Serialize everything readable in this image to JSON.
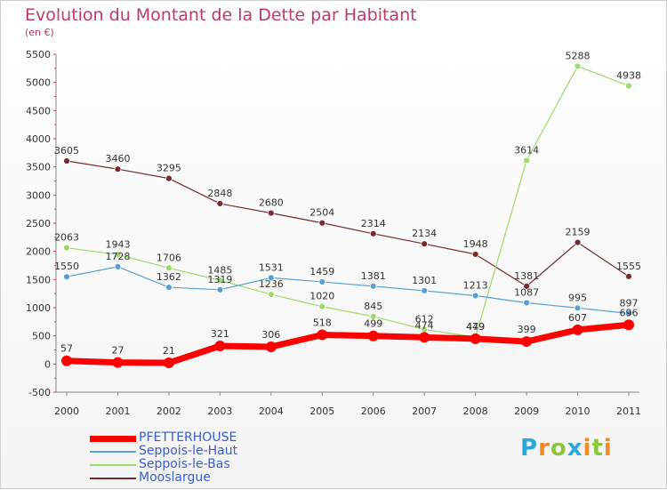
{
  "title": "Evolution du Montant de la Dette par Habitant",
  "subtitle": "(en €)",
  "logo": {
    "letters": [
      "P",
      "r",
      "o",
      "x",
      "i",
      "t",
      "i"
    ],
    "colors": [
      "#2aa7d8",
      "#f08a24",
      "#8cc63e",
      "#2aa7d8",
      "#f08a24",
      "#8cc63e",
      "#f08a24"
    ]
  },
  "chart_data": {
    "type": "line",
    "title": "Evolution du Montant de la Dette par Habitant",
    "subtitle": "(en €)",
    "xlabel": "",
    "ylabel": "",
    "ylim": [
      -500,
      5500
    ],
    "yticks": [
      -500,
      0,
      500,
      1000,
      1500,
      2000,
      2500,
      3000,
      3500,
      4000,
      4500,
      5000,
      5500
    ],
    "categories": [
      "2000",
      "2001",
      "2002",
      "2003",
      "2004",
      "2005",
      "2006",
      "2007",
      "2008",
      "2009",
      "2010",
      "2011"
    ],
    "grid": false,
    "legend_position": "bottom-left",
    "series": [
      {
        "name": "PFETTERHOUSE",
        "color": "#ff0000",
        "values": [
          57,
          27,
          21,
          321,
          306,
          518,
          499,
          474,
          449,
          399,
          607,
          696
        ]
      },
      {
        "name": "Seppois-le-Haut",
        "color": "#5a9fd4",
        "values": [
          1550,
          1728,
          1362,
          1319,
          1531,
          1459,
          1381,
          1301,
          1213,
          1087,
          995,
          897
        ]
      },
      {
        "name": "Seppois-le-Bas",
        "color": "#9cdb6a",
        "values": [
          2063,
          1943,
          1706,
          1485,
          1236,
          1020,
          845,
          612,
          479,
          3614,
          5288,
          4938
        ]
      },
      {
        "name": "Mooslargue",
        "color": "#7a2a2a",
        "values": [
          3605,
          3460,
          3295,
          2848,
          2680,
          2504,
          2314,
          2134,
          1948,
          1381,
          2159,
          1555
        ]
      }
    ]
  }
}
